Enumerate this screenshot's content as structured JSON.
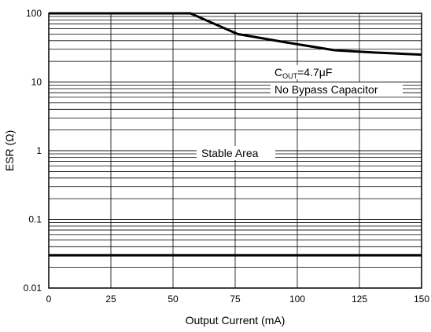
{
  "chart_data": {
    "type": "line",
    "xlabel": "Output Current (mA)",
    "ylabel": "ESR (Ω)",
    "xlim": [
      0,
      150
    ],
    "ylim": [
      0.01,
      100
    ],
    "yscale": "log",
    "grid": true,
    "x_ticks": [
      0,
      25,
      50,
      75,
      100,
      125,
      150
    ],
    "x_tick_labels": [
      "0",
      "25",
      "50",
      "75",
      "100",
      "125",
      "150"
    ],
    "y_ticks": [
      0.01,
      0.1,
      1,
      10,
      100
    ],
    "y_tick_labels": [
      "0.01",
      "0.1",
      "1",
      "10",
      "100"
    ],
    "series": [
      {
        "role": "upper-boundary",
        "x": [
          0,
          57,
          76,
          95,
          115,
          130,
          150
        ],
        "y": [
          100,
          100,
          50,
          38,
          29,
          27,
          25
        ]
      },
      {
        "role": "lower-boundary",
        "x": [
          0,
          150
        ],
        "y": [
          0.03,
          0.03
        ]
      }
    ],
    "annotations": {
      "cout_prefix": "C",
      "cout_sub": "OUT",
      "cout_value": "=4.7μF",
      "bypass": "No Bypass Capacitor",
      "stable": "Stable Area"
    },
    "colors": {
      "curve": "#000000",
      "grid": "#000000"
    }
  }
}
